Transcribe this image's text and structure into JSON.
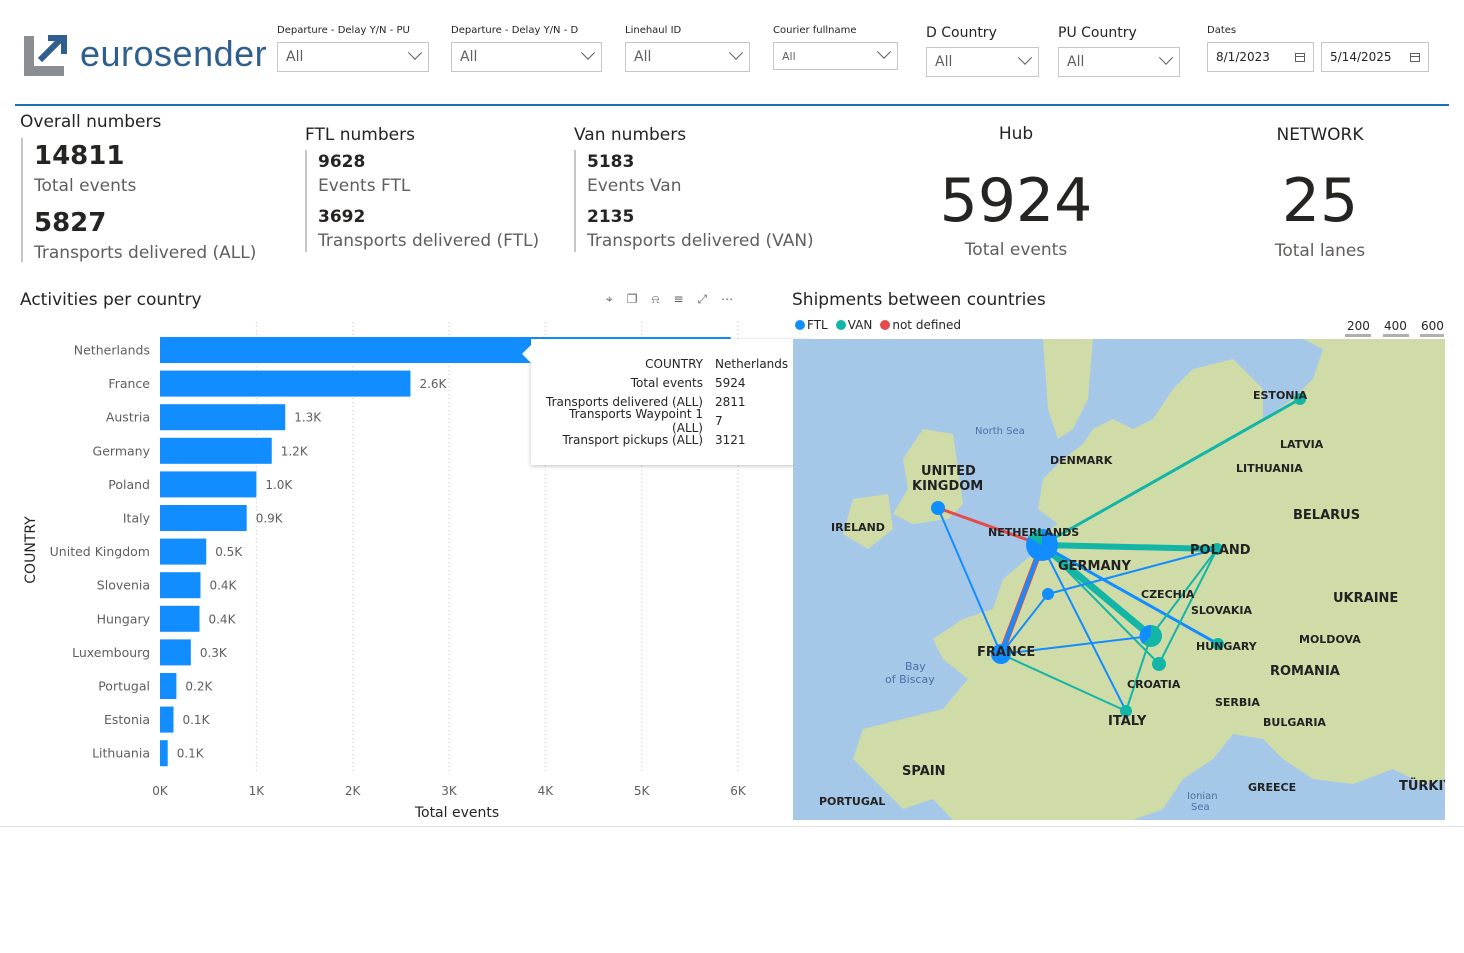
{
  "logo": {
    "text": "eurosender"
  },
  "filters": [
    {
      "label": "Departure - Delay Y/N - PU",
      "value": "All"
    },
    {
      "label": "Departure - Delay Y/N - D",
      "value": "All"
    },
    {
      "label": "Linehaul ID",
      "value": "All"
    },
    {
      "label": "Courier fullname",
      "value": "All"
    },
    {
      "label": "D Country",
      "value": "All"
    },
    {
      "label": "PU Country",
      "value": "All"
    }
  ],
  "dates": {
    "label": "Dates",
    "start": "8/1/2023",
    "end": "5/14/2025"
  },
  "overall": {
    "title": "Overall numbers",
    "total_events": "14811",
    "total_events_label": "Total events",
    "delivered": "5827",
    "delivered_label": "Transports delivered (ALL)"
  },
  "ftl": {
    "title": "FTL numbers",
    "events": "9628",
    "events_label": "Events FTL",
    "delivered": "3692",
    "delivered_label": "Transports delivered (FTL)"
  },
  "van": {
    "title": "Van numbers",
    "events": "5183",
    "events_label": "Events Van",
    "delivered": "2135",
    "delivered_label": "Transports delivered (VAN)"
  },
  "hub": {
    "title": "Hub",
    "value": "5924",
    "label": "Total events"
  },
  "network": {
    "title": "NETWORK",
    "value": "25",
    "label": "Total lanes"
  },
  "chart_data": {
    "type": "bar",
    "orientation": "horizontal",
    "title": "Activities per country",
    "xlabel": "Total events",
    "ylabel": "COUNTRY",
    "xlim": [
      0,
      6000
    ],
    "x_ticks": [
      "0K",
      "1K",
      "2K",
      "3K",
      "4K",
      "5K",
      "6K"
    ],
    "categories": [
      "Netherlands",
      "France",
      "Austria",
      "Germany",
      "Poland",
      "Italy",
      "United Kingdom",
      "Slovenia",
      "Hungary",
      "Luxembourg",
      "Portugal",
      "Estonia",
      "Lithuania"
    ],
    "values": [
      5924,
      2600,
      1300,
      1160,
      1000,
      900,
      480,
      420,
      410,
      320,
      170,
      140,
      80
    ],
    "data_labels": [
      "",
      "2.6K",
      "1.3K",
      "1.2K",
      "1.0K",
      "0.9K",
      "0.5K",
      "0.4K",
      "0.4K",
      "0.3K",
      "0.2K",
      "0.1K",
      "0.1K"
    ],
    "bar_color": "#118dff",
    "grid": true
  },
  "tooltip": {
    "rows": [
      {
        "k": "COUNTRY",
        "v": "Netherlands"
      },
      {
        "k": "Total events",
        "v": "5924"
      },
      {
        "k": "Transports delivered (ALL)",
        "v": "2811"
      },
      {
        "k": "Transports Waypoint 1 (ALL)",
        "v": "7"
      },
      {
        "k": "Transport pickups (ALL)",
        "v": "3121"
      }
    ]
  },
  "map": {
    "title": "Shipments between countries",
    "legend": [
      {
        "label": "FTL",
        "color": "#118dff"
      },
      {
        "label": "VAN",
        "color": "#12b5a6"
      },
      {
        "label": "not defined",
        "color": "#e44c4c"
      }
    ],
    "scale": [
      "200",
      "400",
      "600"
    ],
    "labels": [
      "ESTONIA",
      "LATVIA",
      "LITHUANIA",
      "DENMARK",
      "BELARUS",
      "UNITED",
      "KINGDOM",
      "IRELAND",
      "NETHERLANDS",
      "GERMANY",
      "POLAND",
      "CZECHIA",
      "SLOVAKIA",
      "UKRAINE",
      "MOLDOVA",
      "HUNGARY",
      "ROMANIA",
      "FRANCE",
      "CROATIA",
      "SERBIA",
      "BULGARIA",
      "ITALY",
      "SPAIN",
      "PORTUGAL",
      "GREECE",
      "TÜRKIY",
      "North Sea",
      "Bay",
      "of Biscay",
      "Ionian",
      "Sea"
    ]
  }
}
